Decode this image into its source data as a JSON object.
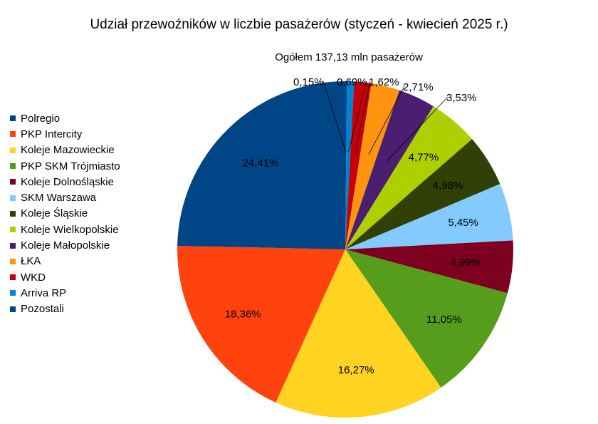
{
  "chart_data": {
    "type": "pie",
    "title": "Udział przewoźników w liczbie pasażerów (styczeń - kwiecień 2025 r.)",
    "subtitle": "Ogółem 137,13 mln pasażerów",
    "legend_position": "left",
    "slices": [
      {
        "name": "Pozostali",
        "value": 0.15,
        "label": "0,15%",
        "color": "#004586"
      },
      {
        "name": "Arriva RP",
        "value": 0.69,
        "label": "0,69%",
        "color": "#0084d1"
      },
      {
        "name": "WKD",
        "value": 1.62,
        "label": "1,62%",
        "color": "#c5000b"
      },
      {
        "name": "ŁKA",
        "value": 2.71,
        "label": "2,71%",
        "color": "#ff950e"
      },
      {
        "name": "Koleje Małopolskie",
        "value": 3.53,
        "label": "3,53%",
        "color": "#4b1f6f"
      },
      {
        "name": "Koleje Wielkopolskie",
        "value": 4.77,
        "label": "4,77%",
        "color": "#aecf00"
      },
      {
        "name": "Koleje Śląskie",
        "value": 4.98,
        "label": "4,98%",
        "color": "#314004"
      },
      {
        "name": "SKM Warszawa",
        "value": 5.45,
        "label": "5,45%",
        "color": "#83caff"
      },
      {
        "name": "Koleje Dolnośląskie",
        "value": 4.99,
        "label": "4,99%",
        "color": "#7e0021"
      },
      {
        "name": "PKP SKM Trójmiasto",
        "value": 11.05,
        "label": "11,05%",
        "color": "#579d1c"
      },
      {
        "name": "Koleje Mazowieckie",
        "value": 16.27,
        "label": "16,27%",
        "color": "#ffd320"
      },
      {
        "name": "PKP Intercity",
        "value": 18.36,
        "label": "18,36%",
        "color": "#ff420e"
      },
      {
        "name": "Polregio",
        "value": 24.41,
        "label": "24,41%",
        "color": "#004586"
      }
    ],
    "legend": [
      {
        "name": "Polregio",
        "color": "#004586"
      },
      {
        "name": "PKP Intercity",
        "color": "#ff420e"
      },
      {
        "name": "Koleje Mazowieckie",
        "color": "#ffd320"
      },
      {
        "name": "PKP SKM Trójmiasto",
        "color": "#579d1c"
      },
      {
        "name": "Koleje Dolnośląskie",
        "color": "#7e0021"
      },
      {
        "name": "SKM Warszawa",
        "color": "#83caff"
      },
      {
        "name": "Koleje Śląskie",
        "color": "#314004"
      },
      {
        "name": "Koleje Wielkopolskie",
        "color": "#aecf00"
      },
      {
        "name": "Koleje Małopolskie",
        "color": "#4b1f6f"
      },
      {
        "name": "ŁKA",
        "color": "#ff950e"
      },
      {
        "name": "WKD",
        "color": "#c5000b"
      },
      {
        "name": "Arriva RP",
        "color": "#0084d1"
      },
      {
        "name": "Pozostali",
        "color": "#004586"
      }
    ]
  }
}
